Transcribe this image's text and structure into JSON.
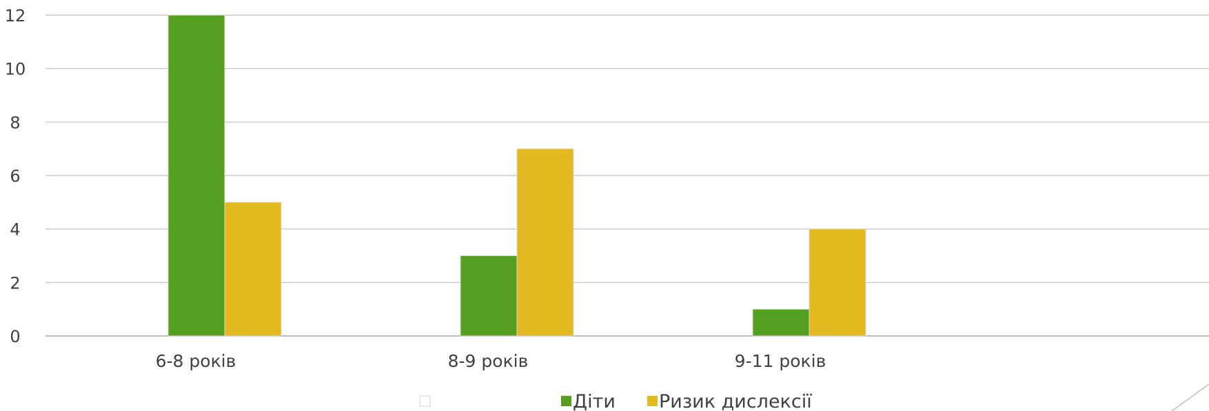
{
  "chart_data": {
    "type": "bar",
    "categories": [
      "6-8 років",
      "8-9 років",
      "9-11 років"
    ],
    "series": [
      {
        "name": "Діти",
        "values": [
          12,
          3,
          1
        ],
        "color": "#56A021"
      },
      {
        "name": "Ризик дислексії",
        "values": [
          5,
          7,
          4
        ],
        "color": "#E3BA1F"
      }
    ],
    "ylim": [
      0,
      12
    ],
    "yticks": [
      0,
      2,
      4,
      6,
      8,
      10,
      12
    ],
    "grid": true,
    "legend_position": "bottom",
    "title": "",
    "xlabel": "",
    "ylabel": ""
  },
  "colors": {
    "grid": "#bfbfbf",
    "axis": "#a6a6a6",
    "text": "#404040",
    "bar_border": "#d9d9d9"
  }
}
